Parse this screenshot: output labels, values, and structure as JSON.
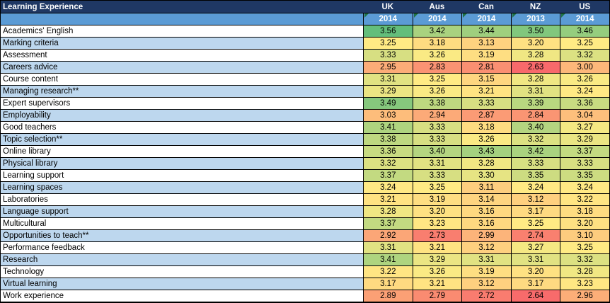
{
  "colors": {
    "header_bg": "#1F3864",
    "header_text": "#FFFFFF",
    "year_row_bg": "#5B9BD5",
    "year_text": "#FFFFFF",
    "alt_row_bg": "#BDD7EE",
    "row_bg": "#FFFFFF",
    "cell_text": "#000000",
    "border": "#000000",
    "flag_triangle": "#1E7145"
  },
  "chart_data": {
    "type": "heatmap",
    "title": "Learning Experience",
    "grid": true,
    "legend_position": "none",
    "columns": [
      {
        "country": "UK",
        "year": "2014"
      },
      {
        "country": "Aus",
        "year": "2014"
      },
      {
        "country": "Can",
        "year": "2014"
      },
      {
        "country": "NZ",
        "year": "2013"
      },
      {
        "country": "US",
        "year": "2014"
      }
    ],
    "color_scale": {
      "min": {
        "value": 2.63,
        "color": "#F8696B"
      },
      "mid": {
        "value": 3.25,
        "color": "#FFEB84"
      },
      "max": {
        "value": 3.56,
        "color": "#63BE7B"
      }
    },
    "rows": [
      {
        "label": "Academics' English",
        "values": [
          "3.56",
          "3.42",
          "3.44",
          "3.50",
          "3.46"
        ]
      },
      {
        "label": "Marking criteria",
        "values": [
          "3.25",
          "3.18",
          "3.13",
          "3.20",
          "3.25"
        ]
      },
      {
        "label": "Assessment",
        "values": [
          "3.33",
          "3.26",
          "3.19",
          "3.28",
          "3.32"
        ]
      },
      {
        "label": "Careers advice",
        "values": [
          "2.95",
          "2.83",
          "2.81",
          "2.63",
          "3.00"
        ]
      },
      {
        "label": "Course content",
        "values": [
          "3.31",
          "3.25",
          "3.15",
          "3.28",
          "3.26"
        ]
      },
      {
        "label": "Managing research**",
        "values": [
          "3.29",
          "3.26",
          "3.21",
          "3.31",
          "3.24"
        ]
      },
      {
        "label": "Expert supervisors",
        "values": [
          "3.49",
          "3.38",
          "3.33",
          "3.39",
          "3.36"
        ]
      },
      {
        "label": "Employability",
        "values": [
          "3.03",
          "2.94",
          "2.87",
          "2.84",
          "3.04"
        ]
      },
      {
        "label": "Good teachers",
        "values": [
          "3.41",
          "3.33",
          "3.18",
          "3.40",
          "3.27"
        ]
      },
      {
        "label": "Topic selection**",
        "values": [
          "3.38",
          "3.33",
          "3.26",
          "3.32",
          "3.29"
        ]
      },
      {
        "label": "Online library",
        "values": [
          "3.36",
          "3.40",
          "3.43",
          "3.42",
          "3.37"
        ]
      },
      {
        "label": "Physical library",
        "values": [
          "3.32",
          "3.31",
          "3.28",
          "3.33",
          "3.33"
        ]
      },
      {
        "label": "Learning support",
        "values": [
          "3.37",
          "3.33",
          "3.30",
          "3.35",
          "3.35"
        ]
      },
      {
        "label": "Learning spaces",
        "values": [
          "3.24",
          "3.25",
          "3.11",
          "3.24",
          "3.24"
        ]
      },
      {
        "label": "Laboratories",
        "values": [
          "3.21",
          "3.19",
          "3.14",
          "3.12",
          "3.22"
        ]
      },
      {
        "label": "Language support",
        "values": [
          "3.28",
          "3.20",
          "3.16",
          "3.17",
          "3.18"
        ]
      },
      {
        "label": "Multicultural",
        "values": [
          "3.37",
          "3.23",
          "3.16",
          "3.25",
          "3.20"
        ]
      },
      {
        "label": "Opportunities to teach**",
        "values": [
          "2.92",
          "2.73",
          "2.99",
          "2.74",
          "3.10"
        ]
      },
      {
        "label": "Performance feedback",
        "values": [
          "3.31",
          "3.21",
          "3.12",
          "3.27",
          "3.25"
        ]
      },
      {
        "label": "Research",
        "values": [
          "3.41",
          "3.29",
          "3.31",
          "3.31",
          "3.32"
        ]
      },
      {
        "label": "Technology",
        "values": [
          "3.22",
          "3.26",
          "3.19",
          "3.20",
          "3.28"
        ]
      },
      {
        "label": "Virtual learning",
        "values": [
          "3.17",
          "3.21",
          "3.12",
          "3.17",
          "3.23"
        ]
      },
      {
        "label": "Work experience",
        "values": [
          "2.89",
          "2.79",
          "2.72",
          "2.64",
          "2.96"
        ]
      }
    ]
  }
}
